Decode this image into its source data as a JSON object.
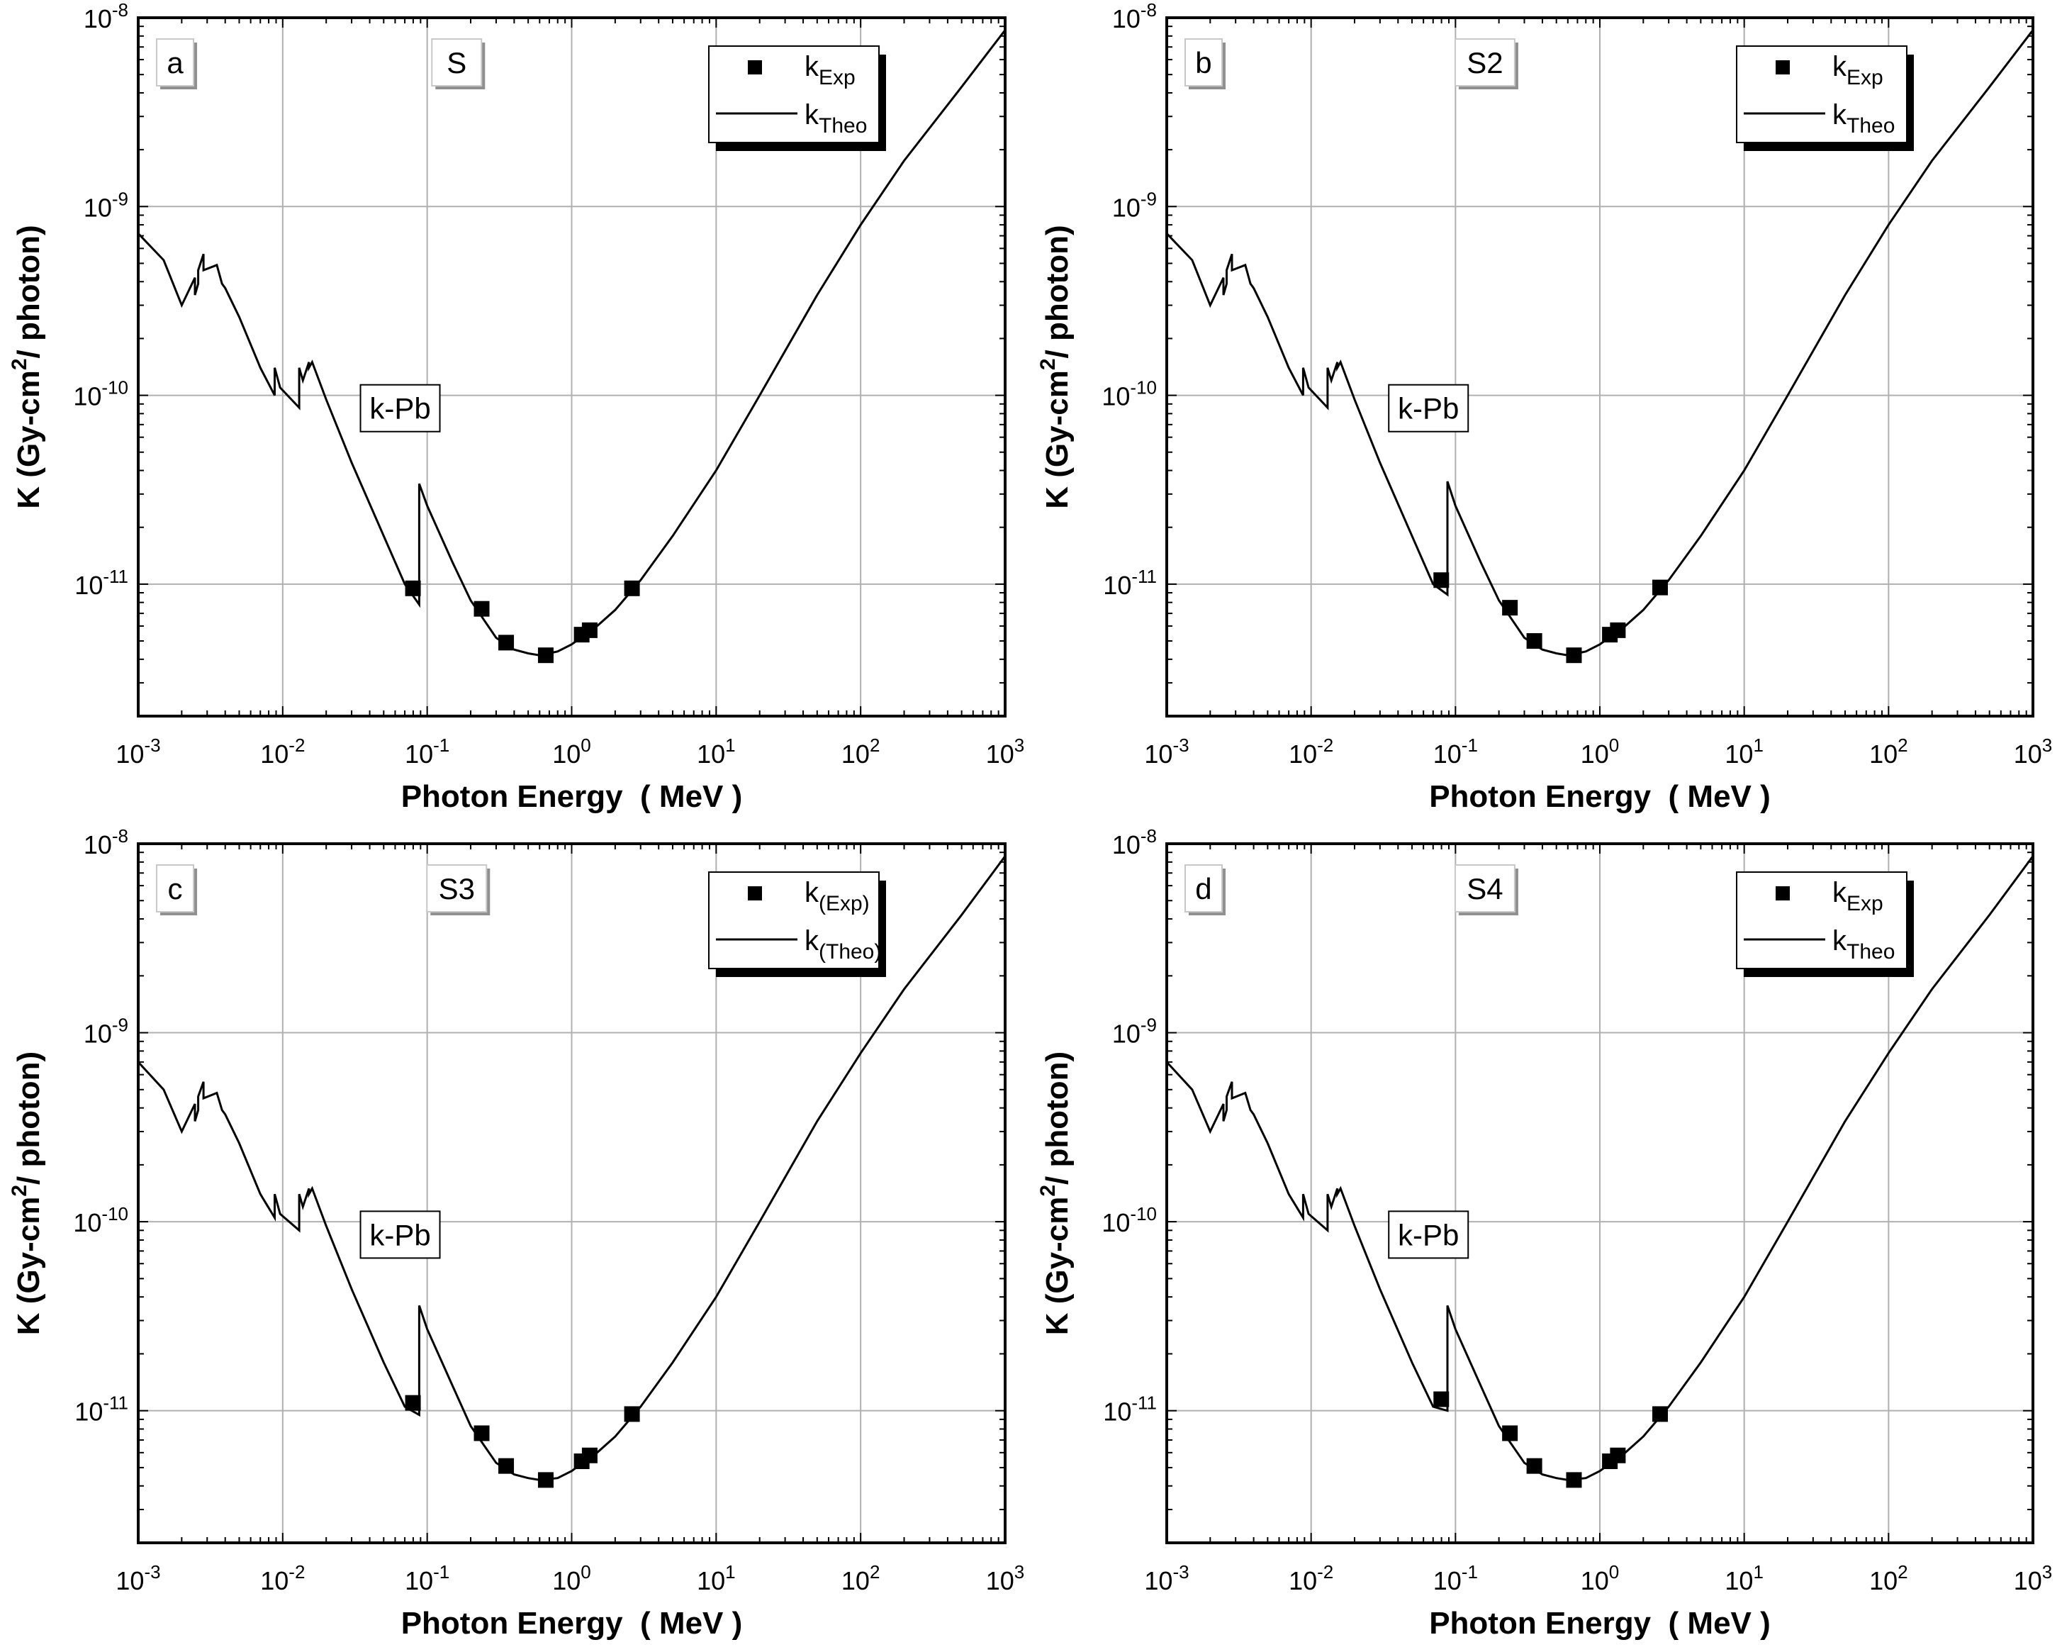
{
  "chart_data": [
    {
      "type": "line",
      "panel_label": "a",
      "sample_label": "S",
      "edge_label": "k-Pb",
      "xlabel": "Photon Energy  ( MeV )",
      "ylabel_parts": [
        "K (Gy-cm",
        "2",
        "/ photon)"
      ],
      "x_scale": "log",
      "y_scale": "log",
      "xlim": [
        0.001,
        1000
      ],
      "ylim": [
        2e-12,
        1e-08
      ],
      "grid": true,
      "legend_position": "top-right",
      "x_ticks": [
        {
          "base": "10",
          "exp": "-3"
        },
        {
          "base": "10",
          "exp": "-2"
        },
        {
          "base": "10",
          "exp": "-1"
        },
        {
          "base": "10",
          "exp": "0"
        },
        {
          "base": "10",
          "exp": "1"
        },
        {
          "base": "10",
          "exp": "2"
        },
        {
          "base": "10",
          "exp": "3"
        }
      ],
      "y_ticks": [
        {
          "base": "10",
          "exp": "-11"
        },
        {
          "base": "10",
          "exp": "-10"
        },
        {
          "base": "10",
          "exp": "-9"
        },
        {
          "base": "10",
          "exp": "-8"
        }
      ],
      "series": [
        {
          "name": "kExp",
          "legend_base": "k",
          "legend_sub": "Exp",
          "kind": "marker",
          "x": [
            0.0797,
            0.2383,
            0.3519,
            0.6617,
            1.1732,
            1.3325,
            2.6145
          ],
          "y": [
            9.5e-12,
            7.4e-12,
            4.9e-12,
            4.2e-12,
            5.4e-12,
            5.7e-12,
            9.5e-12
          ]
        },
        {
          "name": "kTheo",
          "legend_base": "k",
          "legend_sub": "Theo",
          "kind": "line",
          "x": [
            0.001,
            0.0015,
            0.002,
            0.00247,
            0.00247,
            0.0026,
            0.0026,
            0.00283,
            0.00283,
            0.0035,
            0.0038,
            0.004,
            0.005,
            0.007,
            0.0088,
            0.0088,
            0.0096,
            0.013,
            0.013,
            0.0138,
            0.0152,
            0.0152,
            0.016,
            0.02,
            0.03,
            0.05,
            0.07,
            0.088,
            0.088,
            0.1,
            0.15,
            0.2,
            0.3,
            0.4,
            0.5,
            0.6,
            0.8,
            1.0,
            1.5,
            2.0,
            3.0,
            5.0,
            10,
            20,
            50,
            100,
            200,
            500,
            1000
          ],
          "y": [
            7.2e-10,
            5.2e-10,
            3e-10,
            4.2e-10,
            3.4e-10,
            3.9e-10,
            4.6e-10,
            5.6e-10,
            4.6e-10,
            4.9e-10,
            3.9e-10,
            3.7e-10,
            2.6e-10,
            1.4e-10,
            1e-10,
            1.4e-10,
            1.1e-10,
            8.6e-11,
            1.4e-10,
            1.2e-10,
            1.5e-10,
            1.4e-10,
            1.5e-10,
            9.5e-11,
            4.4e-11,
            1.8e-11,
            1e-11,
            7.8e-12,
            3.4e-11,
            2.6e-11,
            1.3e-11,
            8.2e-12,
            5.2e-12,
            4.5e-12,
            4.3e-12,
            4.2e-12,
            4.4e-12,
            4.8e-12,
            6e-12,
            7.3e-12,
            1.05e-11,
            1.8e-11,
            4e-11,
            1e-10,
            3.4e-10,
            8e-10,
            1.75e-09,
            4.3e-09,
            8.6e-09
          ]
        }
      ]
    },
    {
      "type": "line",
      "panel_label": "b",
      "sample_label": "S2",
      "edge_label": "k-Pb",
      "xlabel": "Photon Energy  ( MeV )",
      "ylabel_parts": [
        "K (Gy-cm",
        "2",
        "/ photon)"
      ],
      "x_scale": "log",
      "y_scale": "log",
      "xlim": [
        0.001,
        1000
      ],
      "ylim": [
        2e-12,
        1e-08
      ],
      "grid": true,
      "legend_position": "top-right",
      "x_ticks": [
        {
          "base": "10",
          "exp": "-3"
        },
        {
          "base": "10",
          "exp": "-2"
        },
        {
          "base": "10",
          "exp": "-1"
        },
        {
          "base": "10",
          "exp": "0"
        },
        {
          "base": "10",
          "exp": "1"
        },
        {
          "base": "10",
          "exp": "2"
        },
        {
          "base": "10",
          "exp": "3"
        }
      ],
      "y_ticks": [
        {
          "base": "10",
          "exp": "-11"
        },
        {
          "base": "10",
          "exp": "-10"
        },
        {
          "base": "10",
          "exp": "-9"
        },
        {
          "base": "10",
          "exp": "-8"
        }
      ],
      "series": [
        {
          "name": "kExp",
          "legend_base": "k",
          "legend_sub": "Exp",
          "kind": "marker",
          "x": [
            0.0797,
            0.2383,
            0.3519,
            0.6617,
            1.1732,
            1.3325,
            2.6145
          ],
          "y": [
            1.05e-11,
            7.5e-12,
            5e-12,
            4.2e-12,
            5.4e-12,
            5.7e-12,
            9.6e-12
          ]
        },
        {
          "name": "kTheo",
          "legend_base": "k",
          "legend_sub": "Theo",
          "kind": "line",
          "x": [
            0.001,
            0.0015,
            0.002,
            0.00247,
            0.00247,
            0.0026,
            0.0026,
            0.00283,
            0.00283,
            0.0035,
            0.0038,
            0.004,
            0.005,
            0.007,
            0.0088,
            0.0088,
            0.0096,
            0.013,
            0.013,
            0.0138,
            0.0152,
            0.0152,
            0.016,
            0.02,
            0.03,
            0.05,
            0.07,
            0.088,
            0.088,
            0.1,
            0.15,
            0.2,
            0.3,
            0.4,
            0.5,
            0.6,
            0.8,
            1.0,
            1.5,
            2.0,
            3.0,
            5.0,
            10,
            20,
            50,
            100,
            200,
            500,
            1000
          ],
          "y": [
            7.2e-10,
            5.2e-10,
            3e-10,
            4.2e-10,
            3.4e-10,
            3.9e-10,
            4.6e-10,
            5.6e-10,
            4.6e-10,
            4.9e-10,
            3.9e-10,
            3.7e-10,
            2.6e-10,
            1.4e-10,
            1e-10,
            1.4e-10,
            1.1e-10,
            8.6e-11,
            1.4e-10,
            1.2e-10,
            1.5e-10,
            1.4e-10,
            1.5e-10,
            9.5e-11,
            4.4e-11,
            1.8e-11,
            1e-11,
            8.8e-12,
            3.5e-11,
            2.6e-11,
            1.3e-11,
            8.2e-12,
            5.2e-12,
            4.5e-12,
            4.3e-12,
            4.2e-12,
            4.4e-12,
            4.8e-12,
            6e-12,
            7.3e-12,
            1.05e-11,
            1.8e-11,
            4e-11,
            1e-10,
            3.4e-10,
            8e-10,
            1.75e-09,
            4.3e-09,
            8.6e-09
          ]
        }
      ]
    },
    {
      "type": "line",
      "panel_label": "c",
      "sample_label": "S3",
      "edge_label": "k-Pb",
      "xlabel": "Photon Energy  ( MeV )",
      "ylabel_parts": [
        "K (Gy-cm",
        "2",
        "/ photon)"
      ],
      "x_scale": "log",
      "y_scale": "log",
      "xlim": [
        0.001,
        1000
      ],
      "ylim": [
        2e-12,
        1e-08
      ],
      "grid": true,
      "legend_position": "top-right",
      "x_ticks": [
        {
          "base": "10",
          "exp": "-3"
        },
        {
          "base": "10",
          "exp": "-2"
        },
        {
          "base": "10",
          "exp": "-1"
        },
        {
          "base": "10",
          "exp": "0"
        },
        {
          "base": "10",
          "exp": "1"
        },
        {
          "base": "10",
          "exp": "2"
        },
        {
          "base": "10",
          "exp": "3"
        }
      ],
      "y_ticks": [
        {
          "base": "10",
          "exp": "-11"
        },
        {
          "base": "10",
          "exp": "-10"
        },
        {
          "base": "10",
          "exp": "-9"
        },
        {
          "base": "10",
          "exp": "-8"
        }
      ],
      "series": [
        {
          "name": "k(Exp)",
          "legend_base": "k",
          "legend_sub": "(Exp)",
          "kind": "marker",
          "x": [
            0.0797,
            0.2383,
            0.3519,
            0.6617,
            1.1732,
            1.3325,
            2.6145
          ],
          "y": [
            1.1e-11,
            7.6e-12,
            5.1e-12,
            4.3e-12,
            5.4e-12,
            5.8e-12,
            9.6e-12
          ]
        },
        {
          "name": "k(Theo)",
          "legend_base": "k",
          "legend_sub": "(Theo)",
          "kind": "line",
          "x": [
            0.001,
            0.0015,
            0.002,
            0.00247,
            0.00247,
            0.0026,
            0.0026,
            0.00283,
            0.00283,
            0.0035,
            0.0038,
            0.004,
            0.005,
            0.007,
            0.0088,
            0.0088,
            0.0096,
            0.013,
            0.013,
            0.0138,
            0.0152,
            0.0152,
            0.016,
            0.02,
            0.03,
            0.05,
            0.07,
            0.088,
            0.088,
            0.1,
            0.15,
            0.2,
            0.3,
            0.4,
            0.5,
            0.6,
            0.8,
            1.0,
            1.5,
            2.0,
            3.0,
            5.0,
            10,
            20,
            50,
            100,
            200,
            500,
            1000
          ],
          "y": [
            7e-10,
            5e-10,
            3e-10,
            4.2e-10,
            3.4e-10,
            3.9e-10,
            4.6e-10,
            5.5e-10,
            4.5e-10,
            4.8e-10,
            3.9e-10,
            3.7e-10,
            2.6e-10,
            1.4e-10,
            1.05e-10,
            1.4e-10,
            1.1e-10,
            9e-11,
            1.4e-10,
            1.2e-10,
            1.5e-10,
            1.4e-10,
            1.5e-10,
            9.5e-11,
            4.4e-11,
            1.8e-11,
            1.05e-11,
            9.5e-12,
            3.6e-11,
            2.7e-11,
            1.35e-11,
            8.3e-12,
            5.3e-12,
            4.6e-12,
            4.4e-12,
            4.3e-12,
            4.4e-12,
            4.8e-12,
            6e-12,
            7.3e-12,
            1.05e-11,
            1.8e-11,
            4e-11,
            1e-10,
            3.4e-10,
            7.8e-10,
            1.7e-09,
            4.2e-09,
            8.6e-09
          ]
        }
      ]
    },
    {
      "type": "line",
      "panel_label": "d",
      "sample_label": "S4",
      "edge_label": "k-Pb",
      "xlabel": "Photon Energy  ( MeV )",
      "ylabel_parts": [
        "K (Gy-cm",
        "2",
        "/ photon)"
      ],
      "x_scale": "log",
      "y_scale": "log",
      "xlim": [
        0.001,
        1000
      ],
      "ylim": [
        2e-12,
        1e-08
      ],
      "grid": true,
      "legend_position": "top-right",
      "x_ticks": [
        {
          "base": "10",
          "exp": "-3"
        },
        {
          "base": "10",
          "exp": "-2"
        },
        {
          "base": "10",
          "exp": "-1"
        },
        {
          "base": "10",
          "exp": "0"
        },
        {
          "base": "10",
          "exp": "1"
        },
        {
          "base": "10",
          "exp": "2"
        },
        {
          "base": "10",
          "exp": "3"
        }
      ],
      "y_ticks": [
        {
          "base": "10",
          "exp": "-11"
        },
        {
          "base": "10",
          "exp": "-10"
        },
        {
          "base": "10",
          "exp": "-9"
        },
        {
          "base": "10",
          "exp": "-8"
        }
      ],
      "series": [
        {
          "name": "kExp",
          "legend_base": "k",
          "legend_sub": "Exp",
          "kind": "marker",
          "x": [
            0.0797,
            0.2383,
            0.3519,
            0.6617,
            1.1732,
            1.3325,
            2.6145
          ],
          "y": [
            1.15e-11,
            7.6e-12,
            5.1e-12,
            4.3e-12,
            5.4e-12,
            5.8e-12,
            9.6e-12
          ]
        },
        {
          "name": "kTheo",
          "legend_base": "k",
          "legend_sub": "Theo",
          "kind": "line",
          "x": [
            0.001,
            0.0015,
            0.002,
            0.00247,
            0.00247,
            0.0026,
            0.0026,
            0.00283,
            0.00283,
            0.0035,
            0.0038,
            0.004,
            0.005,
            0.007,
            0.0088,
            0.0088,
            0.0096,
            0.013,
            0.013,
            0.0138,
            0.0152,
            0.0152,
            0.016,
            0.02,
            0.03,
            0.05,
            0.07,
            0.088,
            0.088,
            0.1,
            0.15,
            0.2,
            0.3,
            0.4,
            0.5,
            0.6,
            0.8,
            1.0,
            1.5,
            2.0,
            3.0,
            5.0,
            10,
            20,
            50,
            100,
            200,
            500,
            1000
          ],
          "y": [
            7e-10,
            5e-10,
            3e-10,
            4.2e-10,
            3.4e-10,
            3.9e-10,
            4.6e-10,
            5.5e-10,
            4.5e-10,
            4.8e-10,
            3.9e-10,
            3.7e-10,
            2.6e-10,
            1.4e-10,
            1.05e-10,
            1.4e-10,
            1.1e-10,
            9e-11,
            1.4e-10,
            1.2e-10,
            1.5e-10,
            1.4e-10,
            1.5e-10,
            9.5e-11,
            4.4e-11,
            1.8e-11,
            1.05e-11,
            1e-11,
            3.6e-11,
            2.7e-11,
            1.35e-11,
            8.3e-12,
            5.3e-12,
            4.6e-12,
            4.4e-12,
            4.3e-12,
            4.4e-12,
            4.8e-12,
            6e-12,
            7.3e-12,
            1.05e-11,
            1.8e-11,
            4e-11,
            1e-10,
            3.4e-10,
            7.8e-10,
            1.7e-09,
            4.2e-09,
            8.6e-09
          ]
        }
      ]
    }
  ],
  "colors": {
    "line": "#000000",
    "marker": "#000000",
    "grid": "#b0b0b0",
    "label_box_shadow": "#909090",
    "background": "#ffffff"
  }
}
